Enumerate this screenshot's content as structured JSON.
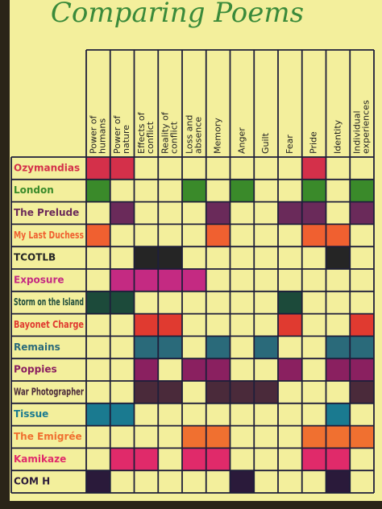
{
  "title": "Comparing Poems",
  "table": {
    "columns": [
      "Power of humans",
      "Power of nature",
      "Effects of conflict",
      "Reality of conflict",
      "Loss and absence",
      "Memory",
      "Anger",
      "Guilt",
      "Fear",
      "Pride",
      "Identity",
      "Individual experiences"
    ],
    "rows": [
      {
        "label": "Ozymandias",
        "color": "#d4304a",
        "cells": [
          1,
          1,
          0,
          0,
          0,
          0,
          0,
          0,
          0,
          1,
          0,
          0
        ]
      },
      {
        "label": "London",
        "color": "#3a8a2a",
        "cells": [
          1,
          0,
          0,
          0,
          1,
          0,
          1,
          0,
          0,
          1,
          0,
          1
        ]
      },
      {
        "label": "The Prelude",
        "color": "#6a2a5a",
        "cells": [
          0,
          1,
          0,
          0,
          0,
          1,
          0,
          0,
          1,
          1,
          0,
          1
        ]
      },
      {
        "label": "My Last Duchess",
        "color": "#f06030",
        "cells": [
          1,
          0,
          0,
          0,
          0,
          1,
          0,
          0,
          0,
          1,
          1,
          0
        ]
      },
      {
        "label": "TCOTLB",
        "color": "#252525",
        "cells": [
          0,
          0,
          1,
          1,
          0,
          0,
          0,
          0,
          0,
          0,
          1,
          0
        ]
      },
      {
        "label": "Exposure",
        "color": "#c42a82",
        "cells": [
          0,
          1,
          1,
          1,
          1,
          0,
          0,
          0,
          0,
          0,
          0,
          0
        ]
      },
      {
        "label": "Storm on the Island",
        "color": "#1c4a3a",
        "cells": [
          1,
          1,
          0,
          0,
          0,
          0,
          0,
          0,
          1,
          0,
          0,
          0
        ]
      },
      {
        "label": "Bayonet Charge",
        "color": "#e03a30",
        "cells": [
          0,
          0,
          1,
          1,
          0,
          0,
          0,
          0,
          1,
          0,
          0,
          1
        ]
      },
      {
        "label": "Remains",
        "color": "#2a6a7a",
        "cells": [
          0,
          0,
          1,
          1,
          0,
          1,
          0,
          1,
          0,
          0,
          1,
          1
        ]
      },
      {
        "label": "Poppies",
        "color": "#8a2060",
        "cells": [
          0,
          0,
          1,
          0,
          1,
          1,
          0,
          0,
          1,
          0,
          1,
          1
        ]
      },
      {
        "label": "War Photographer",
        "color": "#4a2a3a",
        "cells": [
          0,
          0,
          1,
          1,
          0,
          1,
          1,
          1,
          0,
          0,
          0,
          1
        ]
      },
      {
        "label": "Tissue",
        "color": "#1a7a90",
        "cells": [
          1,
          1,
          0,
          0,
          0,
          0,
          0,
          0,
          0,
          0,
          1,
          0
        ]
      },
      {
        "label": "The Emigrée",
        "color": "#f07030",
        "cells": [
          0,
          0,
          0,
          0,
          1,
          1,
          0,
          0,
          0,
          1,
          1,
          1
        ]
      },
      {
        "label": "Kamikaze",
        "color": "#e02a6a",
        "cells": [
          0,
          1,
          1,
          0,
          1,
          1,
          0,
          0,
          0,
          1,
          1,
          0
        ]
      },
      {
        "label": "COM H",
        "color": "#2a1a3a",
        "cells": [
          1,
          0,
          0,
          0,
          0,
          0,
          1,
          0,
          0,
          0,
          1,
          0
        ]
      }
    ]
  }
}
